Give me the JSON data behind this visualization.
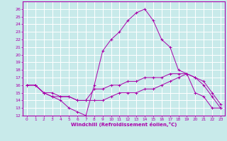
{
  "xlabel": "Windchill (Refroidissement éolien,°C)",
  "bg_color": "#c8eaea",
  "grid_color": "#ffffff",
  "line_color": "#aa00aa",
  "xlim": [
    -0.5,
    23.5
  ],
  "ylim": [
    12,
    27
  ],
  "xticks": [
    0,
    1,
    2,
    3,
    4,
    5,
    6,
    7,
    8,
    9,
    10,
    11,
    12,
    13,
    14,
    15,
    16,
    17,
    18,
    19,
    20,
    21,
    22,
    23
  ],
  "yticks": [
    12,
    13,
    14,
    15,
    16,
    17,
    18,
    19,
    20,
    21,
    22,
    23,
    24,
    25,
    26
  ],
  "series1_x": [
    0,
    1,
    2,
    3,
    4,
    5,
    6,
    7,
    8,
    9,
    10,
    11,
    12,
    13,
    14,
    15,
    16,
    17,
    18,
    19,
    20,
    21,
    22,
    23
  ],
  "series1_y": [
    16,
    16,
    15,
    14.5,
    14,
    13,
    12.5,
    12,
    16,
    20.5,
    22,
    23,
    24.5,
    25.5,
    26,
    24.5,
    22,
    21,
    18,
    17.5,
    15,
    14.5,
    13,
    13
  ],
  "series2_x": [
    0,
    1,
    2,
    3,
    4,
    5,
    6,
    7,
    8,
    9,
    10,
    11,
    12,
    13,
    14,
    15,
    16,
    17,
    18,
    19,
    20,
    21,
    22,
    23
  ],
  "series2_y": [
    16,
    16,
    15,
    15,
    14.5,
    14.5,
    14,
    14,
    15.5,
    15.5,
    16,
    16,
    16.5,
    16.5,
    17,
    17,
    17,
    17.5,
    17.5,
    17.5,
    17,
    16.5,
    15,
    13.5
  ],
  "series3_x": [
    0,
    1,
    2,
    3,
    4,
    5,
    6,
    7,
    8,
    9,
    10,
    11,
    12,
    13,
    14,
    15,
    16,
    17,
    18,
    19,
    20,
    21,
    22,
    23
  ],
  "series3_y": [
    16,
    16,
    15,
    14.5,
    14.5,
    14.5,
    14,
    14,
    14,
    14,
    14.5,
    15,
    15,
    15,
    15.5,
    15.5,
    16,
    16.5,
    17,
    17.5,
    17,
    16,
    14.5,
    13
  ]
}
